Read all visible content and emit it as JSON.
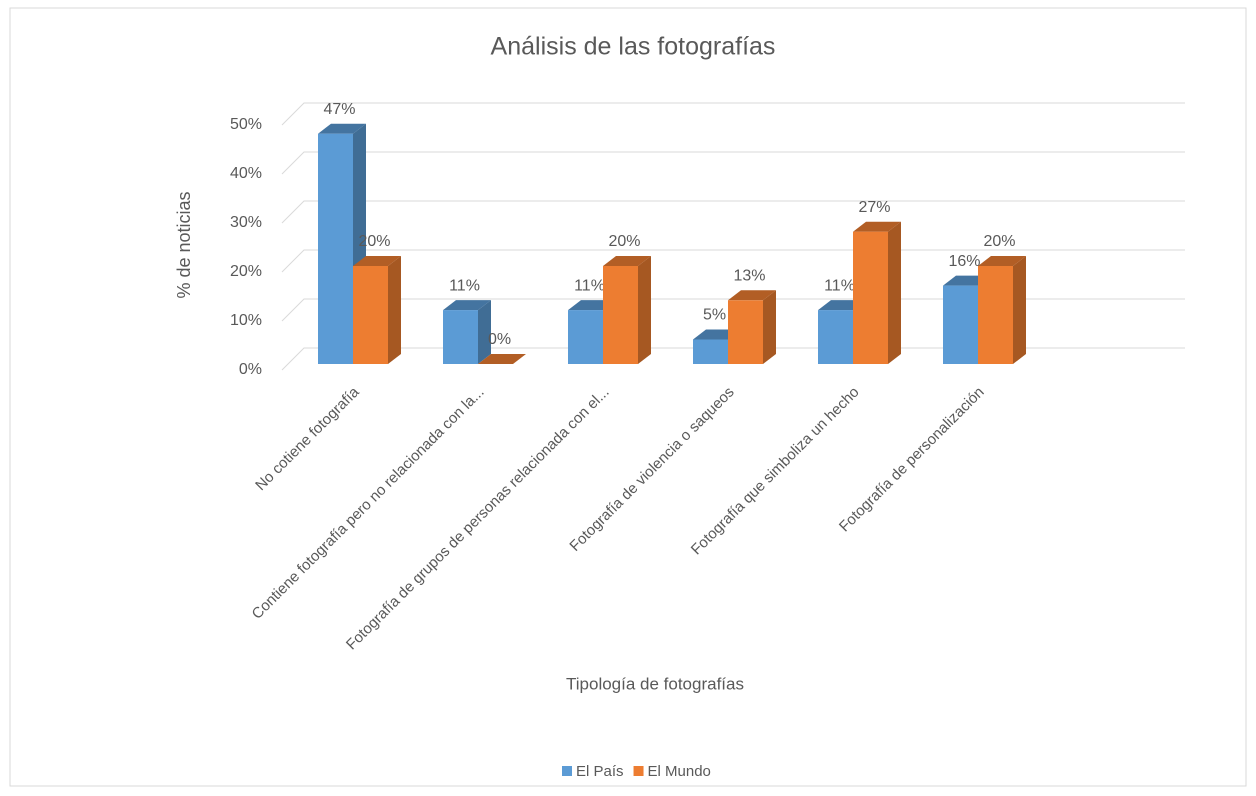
{
  "chart_data": {
    "type": "bar3d",
    "title": "Análisis de las fotografías",
    "x_label": "Tipología de fotografías",
    "y_label": "% de noticias",
    "categories": [
      "No cotiene fotografía",
      "Contiene fotografía pero no relacionada con la...",
      "Fotografía de grupos de personas relacionada con el...",
      "Fotografía de violencia o saqueos",
      "Fotografía que simboliza un hecho",
      "Fotografía de personalización"
    ],
    "series": [
      {
        "name": "El País",
        "color": "#5b9bd5",
        "values": [
          47,
          11,
          11,
          5,
          11,
          16
        ],
        "value_labels": [
          "47%",
          "11%",
          "11%",
          "5%",
          "11%",
          "16%"
        ]
      },
      {
        "name": "El Mundo",
        "color": "#ed7d31",
        "values": [
          20,
          0,
          20,
          13,
          27,
          20
        ],
        "value_labels": [
          "20%",
          "0%",
          "20%",
          "13%",
          "27%",
          "20%"
        ]
      }
    ],
    "ylim": [
      0,
      50
    ],
    "yticks": [
      {
        "value": 0,
        "label": "0%"
      },
      {
        "value": 10,
        "label": "10%"
      },
      {
        "value": 20,
        "label": "20%"
      },
      {
        "value": 30,
        "label": "30%"
      },
      {
        "value": 40,
        "label": "40%"
      },
      {
        "value": 50,
        "label": "50%"
      }
    ],
    "grid": true,
    "legend": "bottom"
  }
}
